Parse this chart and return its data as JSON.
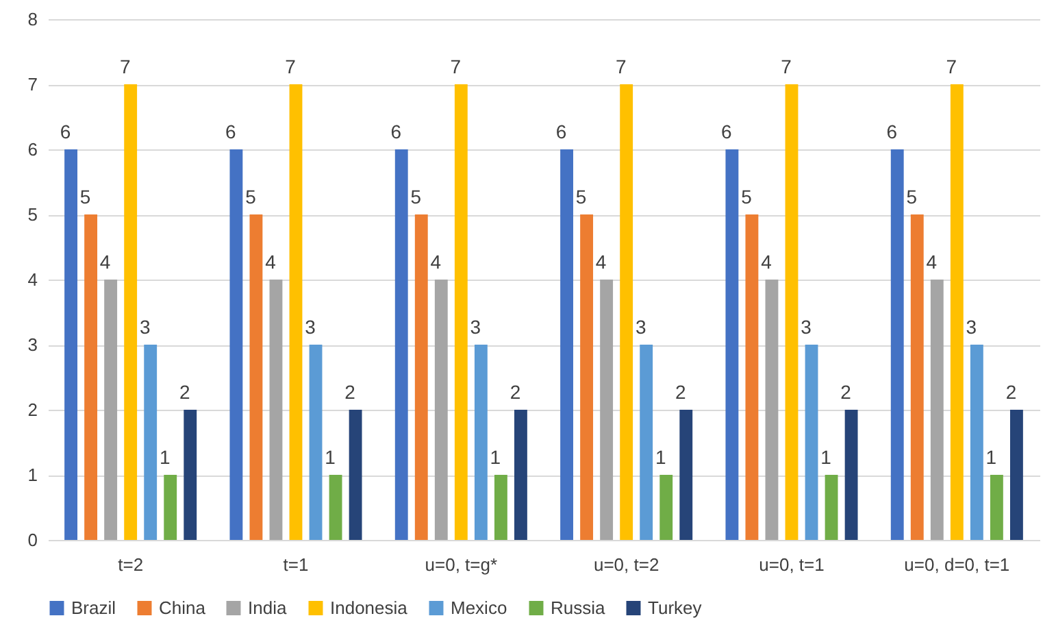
{
  "chart_data": {
    "type": "bar",
    "categories": [
      "t=2",
      "t=1",
      "u=0, t=g*",
      "u=0, t=2",
      "u=0, t=1",
      "u=0, d=0, t=1"
    ],
    "series": [
      {
        "name": "Brazil",
        "color": "#4472c4",
        "values": [
          6,
          6,
          6,
          6,
          6,
          6
        ]
      },
      {
        "name": "China",
        "color": "#ed7d31",
        "values": [
          5,
          5,
          5,
          5,
          5,
          5
        ]
      },
      {
        "name": "India",
        "color": "#a5a5a5",
        "values": [
          4,
          4,
          4,
          4,
          4,
          4
        ]
      },
      {
        "name": "Indonesia",
        "color": "#ffc000",
        "values": [
          7,
          7,
          7,
          7,
          7,
          7
        ]
      },
      {
        "name": "Mexico",
        "color": "#5b9bd5",
        "values": [
          3,
          3,
          3,
          3,
          3,
          3
        ]
      },
      {
        "name": "Russia",
        "color": "#70ad47",
        "values": [
          1,
          1,
          1,
          1,
          1,
          1
        ]
      },
      {
        "name": "Turkey",
        "color": "#264478",
        "values": [
          2,
          2,
          2,
          2,
          2,
          2
        ]
      }
    ],
    "ylim": [
      0,
      8
    ],
    "yticks": [
      0,
      1,
      2,
      3,
      4,
      5,
      6,
      7,
      8
    ],
    "grid": "y",
    "legend": "bottom",
    "data_labels": true
  }
}
